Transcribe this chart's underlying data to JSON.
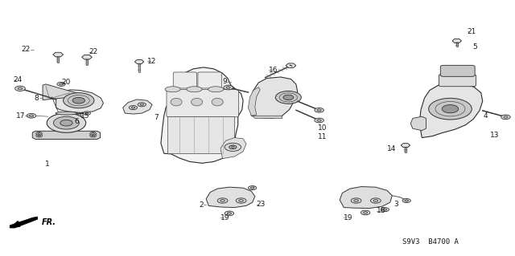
{
  "bg_color": "#ffffff",
  "text_color": "#1a1a1a",
  "line_color": "#2a2a2a",
  "thin_line": 0.5,
  "med_line": 0.7,
  "thick_line": 1.0,
  "font_size": 6.5,
  "diagram_code": "S9V3  B4700 A",
  "labels": {
    "1": [
      0.098,
      0.36,
      "right"
    ],
    "2": [
      0.415,
      0.198,
      "right"
    ],
    "3": [
      0.768,
      0.2,
      "left"
    ],
    "4": [
      0.94,
      0.548,
      "left"
    ],
    "5": [
      0.912,
      0.82,
      "left"
    ],
    "6": [
      0.158,
      0.542,
      "center"
    ],
    "7": [
      0.292,
      0.542,
      "left"
    ],
    "8": [
      0.082,
      0.618,
      "right"
    ],
    "9": [
      0.448,
      0.68,
      "right"
    ],
    "10": [
      0.61,
      0.498,
      "left"
    ],
    "11": [
      0.605,
      0.398,
      "left"
    ],
    "12": [
      0.285,
      0.76,
      "left"
    ],
    "13": [
      0.952,
      0.47,
      "left"
    ],
    "14": [
      0.755,
      0.42,
      "left"
    ],
    "15": [
      0.148,
      0.545,
      "left"
    ],
    "16": [
      0.518,
      0.725,
      "left"
    ],
    "17": [
      0.052,
      0.545,
      "right"
    ],
    "18": [
      0.73,
      0.175,
      "left"
    ],
    "19a": [
      0.405,
      0.148,
      "left"
    ],
    "19b": [
      0.668,
      0.152,
      "left"
    ],
    "20": [
      0.122,
      0.68,
      "left"
    ],
    "21": [
      0.912,
      0.88,
      "left"
    ],
    "22a": [
      0.062,
      0.808,
      "right"
    ],
    "22b": [
      0.175,
      0.795,
      "left"
    ],
    "23": [
      0.52,
      0.2,
      "left"
    ],
    "24": [
      0.028,
      0.685,
      "left"
    ]
  },
  "leader_lines": [
    [
      0.062,
      0.808,
      0.098,
      0.808
    ],
    [
      0.1,
      0.808,
      0.118,
      0.79
    ],
    [
      0.175,
      0.795,
      0.175,
      0.775
    ],
    [
      0.285,
      0.76,
      0.278,
      0.745
    ],
    [
      0.448,
      0.68,
      0.468,
      0.68
    ],
    [
      0.518,
      0.725,
      0.512,
      0.705
    ],
    [
      0.61,
      0.498,
      0.6,
      0.498
    ],
    [
      0.605,
      0.398,
      0.598,
      0.415
    ],
    [
      0.755,
      0.42,
      0.748,
      0.432
    ],
    [
      0.94,
      0.548,
      0.93,
      0.548
    ],
    [
      0.912,
      0.82,
      0.905,
      0.808
    ],
    [
      0.415,
      0.198,
      0.432,
      0.2
    ],
    [
      0.52,
      0.2,
      0.508,
      0.2
    ],
    [
      0.668,
      0.152,
      0.688,
      0.162
    ],
    [
      0.73,
      0.175,
      0.718,
      0.168
    ]
  ]
}
